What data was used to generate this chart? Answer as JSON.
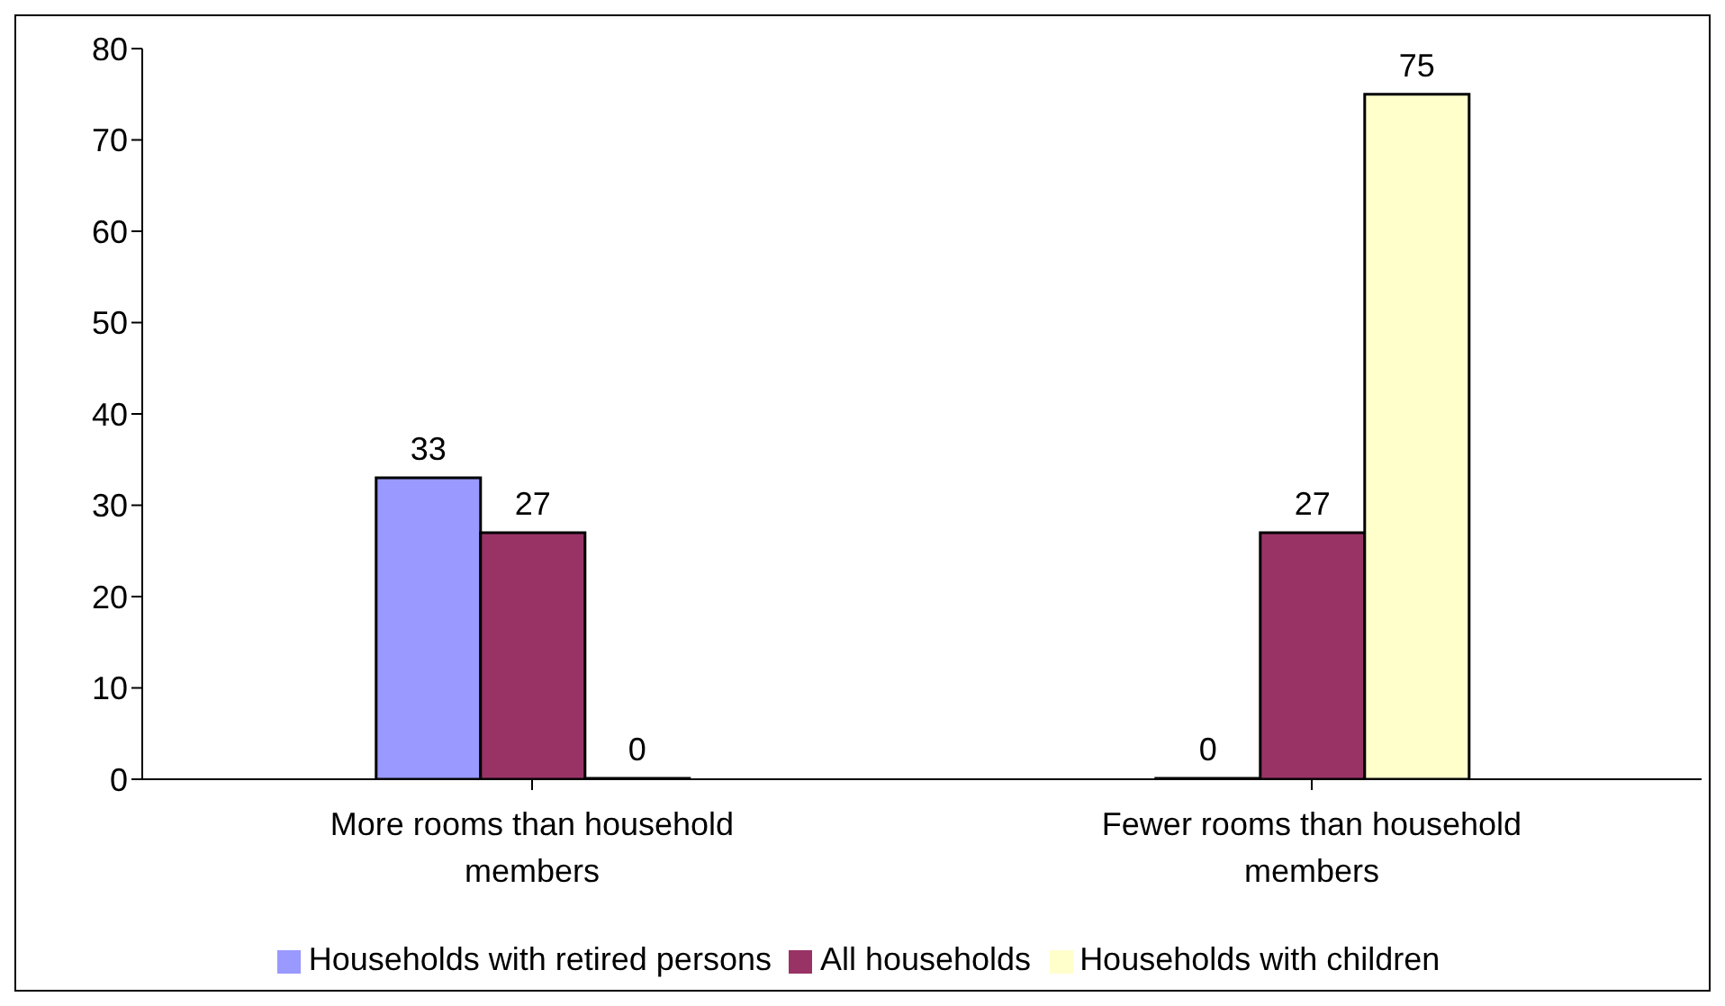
{
  "chart_data": {
    "type": "bar",
    "categories": [
      "More rooms than household members",
      "Fewer rooms than household members"
    ],
    "series": [
      {
        "name": "Households with retired persons",
        "color": "#9999ff",
        "values": [
          33,
          0
        ]
      },
      {
        "name": "All households",
        "color": "#993366",
        "values": [
          27,
          27
        ]
      },
      {
        "name": "Households with children",
        "color": "#ffffcc",
        "values": [
          0,
          75
        ]
      }
    ],
    "ylim": [
      0,
      80
    ],
    "yticks": [
      0,
      10,
      20,
      30,
      40,
      50,
      60,
      70,
      80
    ],
    "grid": false,
    "legend": "bottom",
    "data_labels": true
  }
}
